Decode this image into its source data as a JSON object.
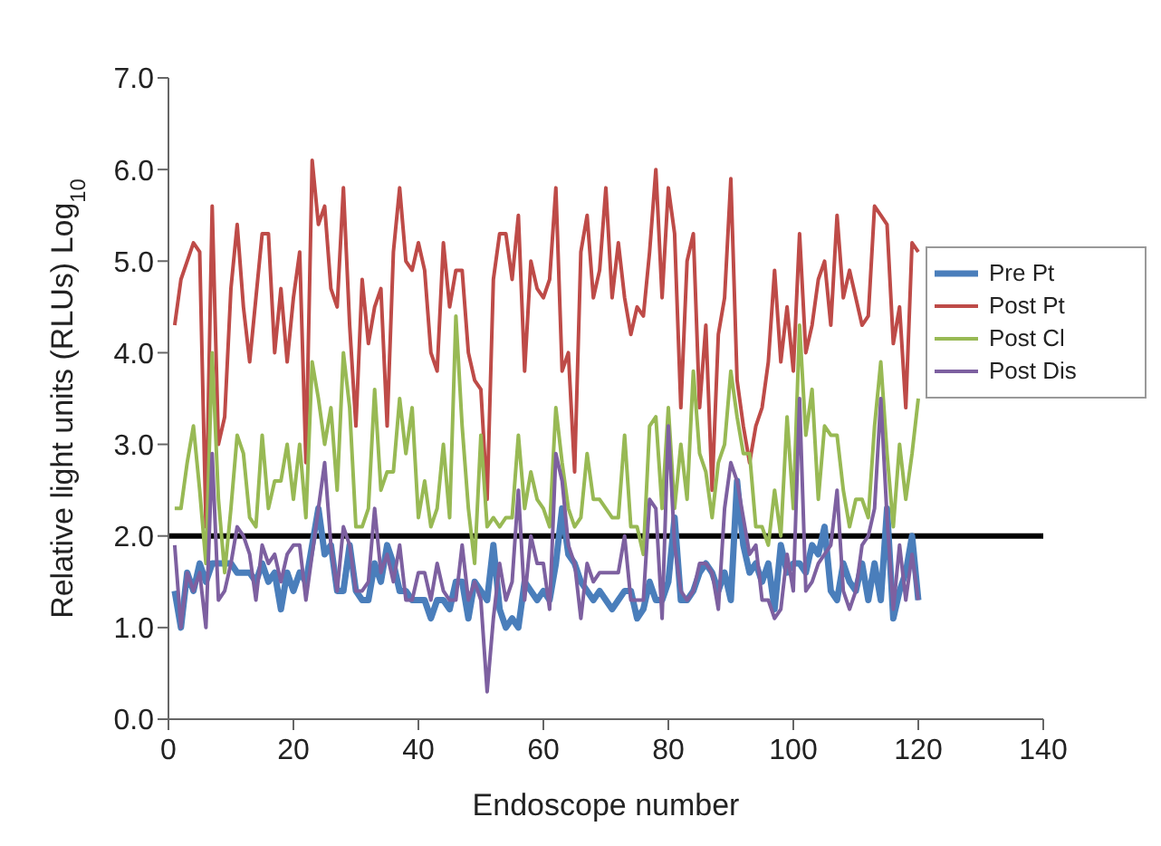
{
  "chart_data": {
    "type": "line",
    "xlabel": "Endoscope number",
    "ylabel": "Relative light units (RLUs) Log$_{10}$",
    "x": [
      1,
      2,
      3,
      4,
      5,
      6,
      7,
      8,
      9,
      10,
      11,
      12,
      13,
      14,
      15,
      16,
      17,
      18,
      19,
      20,
      21,
      22,
      23,
      24,
      25,
      26,
      27,
      28,
      29,
      30,
      31,
      32,
      33,
      34,
      35,
      36,
      37,
      38,
      39,
      40,
      41,
      42,
      43,
      44,
      45,
      46,
      47,
      48,
      49,
      50,
      51,
      52,
      53,
      54,
      55,
      56,
      57,
      58,
      59,
      60,
      61,
      62,
      63,
      64,
      65,
      66,
      67,
      68,
      69,
      70,
      71,
      72,
      73,
      74,
      75,
      76,
      77,
      78,
      79,
      80,
      81,
      82,
      83,
      84,
      85,
      86,
      87,
      88,
      89,
      90,
      91,
      92,
      93,
      94,
      95,
      96,
      97,
      98,
      99,
      100,
      101,
      102,
      103,
      104,
      105,
      106,
      107,
      108,
      109,
      110,
      111,
      112,
      113,
      114,
      115,
      116,
      117,
      118,
      119,
      120
    ],
    "series": [
      {
        "name": "Pre Pt",
        "color": "#4a7ebb",
        "values": [
          1.4,
          1.0,
          1.6,
          1.4,
          1.7,
          1.5,
          1.7,
          1.7,
          1.7,
          1.7,
          1.6,
          1.6,
          1.6,
          1.5,
          1.7,
          1.5,
          1.6,
          1.2,
          1.6,
          1.4,
          1.6,
          1.5,
          1.9,
          2.3,
          1.8,
          1.9,
          1.4,
          1.4,
          1.9,
          1.4,
          1.3,
          1.3,
          1.7,
          1.5,
          1.9,
          1.7,
          1.4,
          1.4,
          1.3,
          1.3,
          1.3,
          1.1,
          1.3,
          1.3,
          1.2,
          1.5,
          1.5,
          1.1,
          1.5,
          1.4,
          1.3,
          1.9,
          1.2,
          1.0,
          1.1,
          1.0,
          1.5,
          1.4,
          1.3,
          1.4,
          1.3,
          1.7,
          2.3,
          1.8,
          1.7,
          1.5,
          1.4,
          1.3,
          1.4,
          1.3,
          1.2,
          1.3,
          1.4,
          1.4,
          1.1,
          1.2,
          1.5,
          1.3,
          1.3,
          1.5,
          2.2,
          1.3,
          1.3,
          1.4,
          1.6,
          1.7,
          1.6,
          1.4,
          1.6,
          1.3,
          2.6,
          1.9,
          1.6,
          1.7,
          1.5,
          1.7,
          1.2,
          1.9,
          1.6,
          1.7,
          1.7,
          1.6,
          1.9,
          1.8,
          2.1,
          1.4,
          1.3,
          1.7,
          1.5,
          1.4,
          1.7,
          1.3,
          1.7,
          1.3,
          2.3,
          1.1,
          1.4,
          1.6,
          2.0,
          1.3
        ]
      },
      {
        "name": "Post Pt",
        "color": "#be4b48",
        "values": [
          4.3,
          4.8,
          5.0,
          5.2,
          5.1,
          2.1,
          5.6,
          3.0,
          3.3,
          4.7,
          5.4,
          4.5,
          3.9,
          4.6,
          5.3,
          5.3,
          4.0,
          4.7,
          3.9,
          4.6,
          5.1,
          2.8,
          6.1,
          5.4,
          5.6,
          4.7,
          4.5,
          5.8,
          4.3,
          3.2,
          4.8,
          4.1,
          4.5,
          4.7,
          3.2,
          5.1,
          5.8,
          5.0,
          4.9,
          5.2,
          4.9,
          4.0,
          3.8,
          5.2,
          4.5,
          4.9,
          4.9,
          4.0,
          3.7,
          3.6,
          2.4,
          4.8,
          5.3,
          5.3,
          4.8,
          5.5,
          3.8,
          5.0,
          4.7,
          4.6,
          4.8,
          5.8,
          3.8,
          4.0,
          2.7,
          5.1,
          5.5,
          4.6,
          4.9,
          5.8,
          4.6,
          5.2,
          4.6,
          4.2,
          4.5,
          4.4,
          5.1,
          6.0,
          4.6,
          5.8,
          5.3,
          3.4,
          5.0,
          5.3,
          3.4,
          4.3,
          2.5,
          4.2,
          4.6,
          5.9,
          3.7,
          3.2,
          2.8,
          3.2,
          3.4,
          3.9,
          4.9,
          3.9,
          4.5,
          3.8,
          5.3,
          4.0,
          4.3,
          4.8,
          5.0,
          4.3,
          5.5,
          4.6,
          4.9,
          4.6,
          4.3,
          4.4,
          5.6,
          5.5,
          5.4,
          4.1,
          4.5,
          3.4,
          5.2,
          5.1
        ]
      },
      {
        "name": "Post Cl",
        "color": "#98b954",
        "values": [
          2.3,
          2.3,
          2.8,
          3.2,
          2.5,
          1.7,
          4.0,
          2.4,
          1.6,
          2.3,
          3.1,
          2.9,
          2.2,
          2.1,
          3.1,
          2.3,
          2.6,
          2.6,
          3.0,
          2.4,
          3.0,
          2.2,
          3.9,
          3.5,
          3.0,
          3.4,
          2.5,
          4.0,
          3.4,
          2.1,
          2.1,
          2.3,
          3.6,
          2.5,
          2.7,
          2.7,
          3.5,
          2.9,
          3.4,
          2.2,
          2.6,
          2.1,
          2.3,
          3.0,
          2.2,
          4.4,
          3.2,
          2.3,
          1.7,
          3.1,
          2.1,
          2.2,
          2.1,
          2.2,
          2.2,
          3.1,
          2.3,
          2.7,
          2.4,
          2.3,
          2.1,
          3.4,
          2.8,
          2.3,
          2.1,
          2.2,
          2.9,
          2.4,
          2.4,
          2.3,
          2.2,
          2.2,
          3.1,
          2.1,
          2.1,
          1.8,
          3.2,
          3.3,
          2.3,
          3.4,
          2.3,
          3.0,
          2.4,
          3.8,
          2.9,
          2.7,
          2.2,
          2.8,
          3.0,
          3.8,
          3.3,
          2.9,
          2.9,
          2.1,
          2.1,
          1.9,
          2.5,
          2.0,
          3.3,
          2.3,
          4.3,
          3.1,
          3.6,
          2.4,
          3.2,
          3.1,
          3.1,
          2.5,
          2.1,
          2.4,
          2.4,
          2.2,
          3.2,
          3.9,
          2.9,
          2.1,
          3.0,
          2.4,
          2.9,
          3.5
        ]
      },
      {
        "name": "Post Dis",
        "color": "#7d60a0",
        "values": [
          1.9,
          1.0,
          1.6,
          1.4,
          1.6,
          1.0,
          2.9,
          1.3,
          1.4,
          1.7,
          2.1,
          2.0,
          1.8,
          1.3,
          1.9,
          1.7,
          1.8,
          1.5,
          1.8,
          1.9,
          1.9,
          1.3,
          1.8,
          2.3,
          2.8,
          1.9,
          1.4,
          2.1,
          1.9,
          1.4,
          1.4,
          1.5,
          2.3,
          1.6,
          1.8,
          1.5,
          1.9,
          1.3,
          1.3,
          1.6,
          1.6,
          1.3,
          1.7,
          1.4,
          1.3,
          1.3,
          1.9,
          1.3,
          1.5,
          1.3,
          0.3,
          1.1,
          1.7,
          1.3,
          1.5,
          2.5,
          1.3,
          2.0,
          1.7,
          1.7,
          1.2,
          2.9,
          2.6,
          1.9,
          1.7,
          1.1,
          1.7,
          1.5,
          1.6,
          1.6,
          1.6,
          1.6,
          2.0,
          1.3,
          1.3,
          1.3,
          2.4,
          2.3,
          1.1,
          3.2,
          1.9,
          1.4,
          1.3,
          1.4,
          1.7,
          1.7,
          1.6,
          1.2,
          2.3,
          2.8,
          2.6,
          2.2,
          1.8,
          1.9,
          1.3,
          1.3,
          1.1,
          1.2,
          1.8,
          1.4,
          3.5,
          1.4,
          1.5,
          1.7,
          1.8,
          1.9,
          2.5,
          1.4,
          1.2,
          1.4,
          1.9,
          2.0,
          2.3,
          3.5,
          2.2,
          1.2,
          1.9,
          1.3,
          1.8,
          1.3
        ]
      }
    ],
    "xlim": [
      0,
      140
    ],
    "xticks": [
      0,
      20,
      40,
      60,
      80,
      100,
      120,
      140
    ],
    "ylim": [
      0,
      7
    ],
    "yticks": [
      {
        "value": 0,
        "label": "0.0"
      },
      {
        "value": 1,
        "label": "1.0"
      },
      {
        "value": 2,
        "label": "2.0"
      },
      {
        "value": 3,
        "label": "3.0"
      },
      {
        "value": 4,
        "label": "4.0"
      },
      {
        "value": 5,
        "label": "5.0"
      },
      {
        "value": 6,
        "label": "6.0"
      },
      {
        "value": 7,
        "label": "7.0"
      }
    ],
    "ref_lines": [
      {
        "axis": "y",
        "value": 2,
        "color": "#000000"
      }
    ],
    "legend": "right",
    "marker": "none",
    "line_style": "solid",
    "grid": false
  }
}
